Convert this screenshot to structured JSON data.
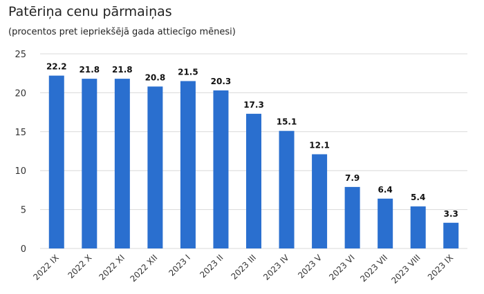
{
  "chart_data": {
    "type": "bar",
    "title": "Patēriņa cenu pārmaiņas",
    "subtitle": "(procentos pret iepriekšējā gada attiecīgo mēnesi)",
    "xlabel": "",
    "ylabel": "",
    "ylim": [
      0,
      25
    ],
    "yticks": [
      0,
      5,
      10,
      15,
      20,
      25
    ],
    "grid": true,
    "categories": [
      "2022 IX",
      "2022 X",
      "2022 XI",
      "2022 XII",
      "2023 I",
      "2023 II",
      "2023 III",
      "2023 IV",
      "2023 V",
      "2023 VI",
      "2023 VII",
      "2023 VIII",
      "2023 IX"
    ],
    "values": [
      22.2,
      21.8,
      21.8,
      20.8,
      21.5,
      20.3,
      17.3,
      15.1,
      12.1,
      7.9,
      6.4,
      5.4,
      3.3
    ],
    "data_labels": [
      "22.2",
      "21.8",
      "21.8",
      "20.8",
      "21.5",
      "20.3",
      "17.3",
      "15.1",
      "12.1",
      "7.9",
      "6.4",
      "5.4",
      "3.3"
    ],
    "bar_color": "#2a6fcf",
    "grid_color": "#d9d9d9"
  }
}
